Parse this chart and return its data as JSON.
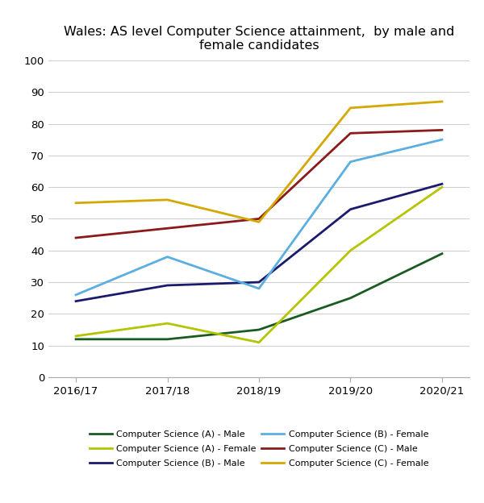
{
  "title": "Wales: AS level Computer Science attainment,  by male and\nfemale candidates",
  "x_labels": [
    "2016/17",
    "2017/18",
    "2018/19",
    "2019/20",
    "2020/21"
  ],
  "x_values": [
    0,
    1,
    2,
    3,
    4
  ],
  "series": [
    {
      "label": "Computer Science (A) - Male",
      "color": "#1a5c20",
      "values": [
        12,
        12,
        15,
        25,
        39
      ]
    },
    {
      "label": "Computer Science (A) - Female",
      "color": "#b5c400",
      "values": [
        13,
        17,
        11,
        40,
        60
      ]
    },
    {
      "label": "Computer Science (B) - Male",
      "color": "#1a1a6e",
      "values": [
        24,
        29,
        30,
        53,
        61
      ]
    },
    {
      "label": "Computer Science (B) - Female",
      "color": "#5baee0",
      "values": [
        26,
        38,
        28,
        68,
        75
      ]
    },
    {
      "label": "Computer Science (C) - Male",
      "color": "#8b1a1a",
      "values": [
        44,
        47,
        50,
        77,
        78
      ]
    },
    {
      "label": "Computer Science (C) - Female",
      "color": "#d4a800",
      "values": [
        55,
        56,
        49,
        85,
        87
      ]
    }
  ],
  "ylim": [
    0,
    100
  ],
  "yticks": [
    0,
    10,
    20,
    30,
    40,
    50,
    60,
    70,
    80,
    90,
    100
  ],
  "grid_color": "#d0d0d0",
  "background_color": "#ffffff",
  "legend_ncol": 2,
  "title_fontsize": 11.5,
  "tick_fontsize": 9.5,
  "legend_fontsize": 8.0,
  "linewidth": 2.0
}
